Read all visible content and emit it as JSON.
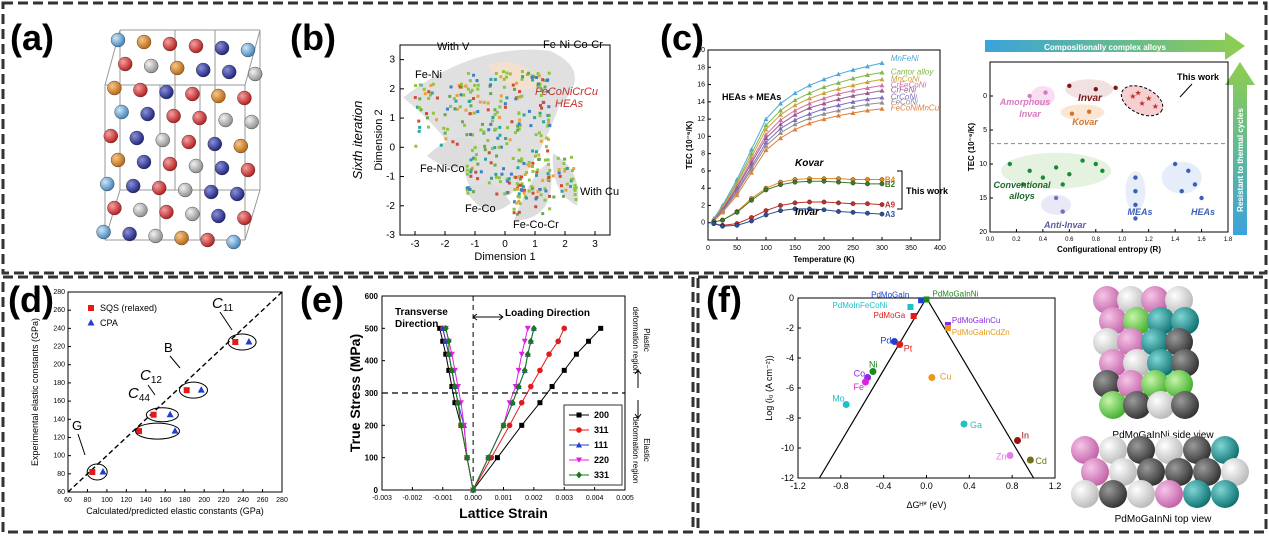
{
  "panel_labels": {
    "a": "(a)",
    "b": "(b)",
    "c": "(c)",
    "d": "(d)",
    "e": "(e)",
    "f": "(f)"
  },
  "chart_data": [
    {
      "panel": "b",
      "type": "scatter",
      "title": "",
      "xlabel": "Dimension 1",
      "ylabel": "Dimension 2",
      "side_label": "Sixth iteration",
      "xlim": [
        -3.5,
        3.5
      ],
      "ylim": [
        -3,
        3.5
      ],
      "x_ticks": [
        "-3",
        "-2",
        "-1",
        "0",
        "1",
        "2",
        "3"
      ],
      "y_ticks": [
        "3",
        "2",
        "1",
        "0",
        "-1",
        "-2",
        "-3"
      ],
      "annotations": [
        "With V",
        "Fe-Ni-Co-Cr",
        "Fe-Ni",
        "FeCoNiCrCu HEAs",
        "Fe-Ni-Co",
        "With Cu",
        "Fe-Co",
        "Fe-Co-Cr"
      ]
    },
    {
      "panel": "c-left",
      "type": "line",
      "xlabel": "Temperature (K)",
      "ylabel": "TEC (10⁻⁶/K)",
      "xlim": [
        0,
        400
      ],
      "ylim": [
        -2,
        20
      ],
      "x_ticks": [
        "0",
        "50",
        "100",
        "150",
        "200",
        "250",
        "300",
        "350",
        "400"
      ],
      "y_ticks": [
        "0",
        "2",
        "4",
        "6",
        "8",
        "10",
        "12",
        "14",
        "16",
        "18",
        "20"
      ],
      "annotations": [
        "HEAs + MEAs",
        "Kovar",
        "Invar",
        "This work"
      ],
      "series": [
        {
          "name": "MnFeNi",
          "color": "#4fa8d8",
          "x": [
            10,
            25,
            50,
            75,
            100,
            125,
            150,
            175,
            200,
            225,
            250,
            275,
            300
          ],
          "y": [
            0.5,
            2,
            5,
            8.5,
            12,
            13.8,
            15,
            15.9,
            16.6,
            17.2,
            17.7,
            18.1,
            18.5
          ]
        },
        {
          "name": "Cantor alloy",
          "color": "#7fb84a",
          "x": [
            10,
            25,
            50,
            75,
            100,
            125,
            150,
            175,
            200,
            225,
            250,
            275,
            300
          ],
          "y": [
            0.4,
            1.8,
            4.7,
            8,
            11.3,
            13,
            14.2,
            15,
            15.7,
            16.2,
            16.7,
            17.1,
            17.4
          ]
        },
        {
          "name": "MnCoNi",
          "color": "#c9a43a",
          "x": [
            10,
            25,
            50,
            75,
            100,
            125,
            150,
            175,
            200,
            225,
            250,
            275,
            300
          ],
          "y": [
            0.4,
            1.7,
            4.5,
            7.6,
            10.8,
            12.5,
            13.6,
            14.4,
            15,
            15.5,
            15.9,
            16.3,
            16.6
          ]
        },
        {
          "name": "CrFeCoNi",
          "color": "#d46fa7",
          "x": [
            10,
            25,
            50,
            75,
            100,
            125,
            150,
            175,
            200,
            225,
            250,
            275,
            300
          ],
          "y": [
            0.3,
            1.6,
            4.2,
            7.2,
            10.2,
            11.9,
            13,
            13.8,
            14.4,
            14.9,
            15.3,
            15.6,
            15.9
          ]
        },
        {
          "name": "CrFeNi",
          "color": "#9c5a8a",
          "x": [
            10,
            25,
            50,
            75,
            100,
            125,
            150,
            175,
            200,
            225,
            250,
            275,
            300
          ],
          "y": [
            0.3,
            1.5,
            4,
            6.9,
            9.8,
            11.4,
            12.5,
            13.3,
            13.8,
            14.3,
            14.7,
            15,
            15.3
          ]
        },
        {
          "name": "CrCoNi",
          "color": "#7a6bc0",
          "x": [
            10,
            25,
            50,
            75,
            100,
            125,
            150,
            175,
            200,
            225,
            250,
            275,
            300
          ],
          "y": [
            0.3,
            1.4,
            3.7,
            6.5,
            9.3,
            10.9,
            11.9,
            12.6,
            13.2,
            13.6,
            14,
            14.3,
            14.5
          ]
        },
        {
          "name": "FeCoNi",
          "color": "#8f8f8f",
          "x": [
            10,
            25,
            50,
            75,
            100,
            125,
            150,
            175,
            200,
            225,
            250,
            275,
            300
          ],
          "y": [
            0.2,
            1.3,
            3.5,
            6.2,
            8.9,
            10.4,
            11.4,
            12.1,
            12.6,
            13,
            13.4,
            13.7,
            13.9
          ]
        },
        {
          "name": "FeCoNiMnCu",
          "color": "#e07f3a",
          "x": [
            10,
            25,
            50,
            75,
            100,
            125,
            150,
            175,
            200,
            225,
            250,
            275,
            300
          ],
          "y": [
            0.2,
            1.2,
            3.2,
            5.8,
            8.4,
            9.8,
            10.8,
            11.5,
            12,
            12.4,
            12.7,
            13,
            13.2
          ]
        },
        {
          "name": "B4",
          "color": "#e08a1e",
          "x": [
            10,
            25,
            50,
            75,
            100,
            125,
            150,
            175,
            200,
            225,
            250,
            275,
            300
          ],
          "y": [
            0.1,
            0.3,
            1.3,
            2.8,
            4,
            4.7,
            5,
            5.1,
            5.1,
            5.1,
            5,
            5,
            5
          ]
        },
        {
          "name": "B2",
          "color": "#3b7a28",
          "x": [
            10,
            25,
            50,
            75,
            100,
            125,
            150,
            175,
            200,
            225,
            250,
            275,
            300
          ],
          "y": [
            0.1,
            0.3,
            1.2,
            2.6,
            3.8,
            4.4,
            4.7,
            4.8,
            4.8,
            4.7,
            4.6,
            4.5,
            4.5
          ]
        },
        {
          "name": "A9",
          "color": "#c0302a",
          "x": [
            10,
            25,
            50,
            75,
            100,
            125,
            150,
            175,
            200,
            225,
            250,
            275,
            300
          ],
          "y": [
            -0.1,
            -0.3,
            -0.1,
            0.6,
            1.4,
            2,
            2.3,
            2.4,
            2.4,
            2.3,
            2.2,
            2.2,
            2.1
          ]
        },
        {
          "name": "A3",
          "color": "#2b4f9a",
          "x": [
            10,
            25,
            50,
            75,
            100,
            125,
            150,
            175,
            200,
            225,
            250,
            275,
            300
          ],
          "y": [
            -0.1,
            -0.4,
            -0.3,
            0.2,
            0.9,
            1.4,
            1.6,
            1.6,
            1.5,
            1.3,
            1.2,
            1.1,
            1
          ]
        }
      ]
    },
    {
      "panel": "c-right",
      "type": "scatter",
      "xlabel": "Configurational entropy (R)",
      "ylabel": "TEC (10⁻⁶/K)",
      "xlim": [
        0,
        1.8
      ],
      "ylim": [
        20,
        -5
      ],
      "x_ticks": [
        "0.0",
        "0.2",
        "0.4",
        "0.6",
        "0.8",
        "1.0",
        "1.2",
        "1.4",
        "1.6",
        "1.8"
      ],
      "y_ticks": [
        "0",
        "5",
        "10",
        "15",
        "20"
      ],
      "top_arrow_label": "Compositionally complex alloys",
      "side_arrow_label": "Resistant to thermal cycles",
      "annotations": [
        "This work",
        "Amorphous Invar",
        "Invar",
        "Kovar",
        "Conventional alloys",
        "Anti-Invar",
        "MEAs",
        "HEAs"
      ]
    },
    {
      "panel": "d",
      "type": "scatter",
      "xlabel": "Calculated/predicted elastic constants (GPa)",
      "ylabel": "Experimental elastic constants (GPa)",
      "xlim": [
        60,
        280
      ],
      "ylim": [
        60,
        280
      ],
      "x_ticks": [
        "60",
        "80",
        "100",
        "120",
        "140",
        "160",
        "180",
        "200",
        "220",
        "240",
        "260",
        "280"
      ],
      "y_ticks": [
        "60",
        "80",
        "100",
        "120",
        "140",
        "160",
        "180",
        "200",
        "220",
        "240",
        "260",
        "280"
      ],
      "legend": [
        "SQS (relaxed)",
        "CPA"
      ],
      "legend_position": "top-left",
      "annotations": [
        "C11",
        "B",
        "C12",
        "C44",
        "G"
      ],
      "series": [
        {
          "name": "SQS (relaxed)",
          "color": "#e31a1c",
          "x": [
            232,
            182,
            148,
            133,
            85
          ],
          "y": [
            225,
            172,
            145,
            127,
            82
          ]
        },
        {
          "name": "CPA",
          "color": "#1f3fd1",
          "x": [
            246,
            197,
            165,
            170,
            96
          ],
          "y": [
            225,
            172,
            145,
            127,
            82
          ]
        }
      ]
    },
    {
      "panel": "e",
      "type": "line",
      "xlabel": "Lattice Strain",
      "ylabel": "True Stress (MPa)",
      "xlim": [
        -0.003,
        0.005
      ],
      "ylim": [
        0,
        600
      ],
      "x_ticks": [
        "-0.003",
        "-0.002",
        "-0.001",
        "0.000",
        "0.001",
        "0.002",
        "0.003",
        "0.004",
        "0.005"
      ],
      "y_ticks": [
        "0",
        "100",
        "200",
        "300",
        "400",
        "500",
        "600"
      ],
      "annotations": [
        "Transverse Direction",
        "Loading Direction",
        "Plastic deformation region",
        "Elastic deformation region"
      ],
      "legend": [
        "200",
        "311",
        "111",
        "220",
        "331"
      ],
      "series": [
        {
          "name": "200",
          "color": "#000000",
          "marker": "square",
          "x_load": [
            0,
            0.0008,
            0.0016,
            0.0022,
            0.0026,
            0.003,
            0.0034,
            0.0038,
            0.0042
          ],
          "x_trans": [
            0,
            -0.0002,
            -0.0004,
            -0.0006,
            -0.0007,
            -0.0008,
            -0.0009,
            -0.001,
            -0.0011
          ],
          "y": [
            0,
            100,
            200,
            270,
            320,
            370,
            420,
            460,
            500
          ]
        },
        {
          "name": "311",
          "color": "#e31a1c",
          "marker": "circle",
          "x_load": [
            0,
            0.0006,
            0.0012,
            0.0016,
            0.0019,
            0.0022,
            0.0025,
            0.0028,
            0.003
          ],
          "x_trans": [
            0,
            -0.0002,
            -0.0004,
            -0.0005,
            -0.0006,
            -0.0007,
            -0.0008,
            -0.0009,
            -0.001
          ],
          "y": [
            0,
            100,
            200,
            270,
            320,
            370,
            420,
            460,
            500
          ]
        },
        {
          "name": "111",
          "color": "#1f3fd1",
          "marker": "triangle",
          "x_load": [
            0,
            0.0005,
            0.001,
            0.0013,
            0.0015,
            0.0017,
            0.0018,
            0.0019,
            0.002
          ],
          "x_trans": [
            0,
            -0.0002,
            -0.0003,
            -0.0005,
            -0.0006,
            -0.0007,
            -0.0008,
            -0.0009,
            -0.001
          ],
          "y": [
            0,
            100,
            200,
            270,
            320,
            370,
            420,
            460,
            500
          ]
        },
        {
          "name": "220",
          "color": "#e020e0",
          "marker": "triangle-down",
          "x_load": [
            0,
            0.0005,
            0.001,
            0.0012,
            0.0014,
            0.0015,
            0.0016,
            0.0017,
            0.0018
          ],
          "x_trans": [
            0,
            -0.0002,
            -0.0003,
            -0.0004,
            -0.0005,
            -0.0006,
            -0.0007,
            -0.0008,
            -0.0009
          ],
          "y": [
            0,
            100,
            200,
            270,
            320,
            370,
            420,
            460,
            500
          ]
        },
        {
          "name": "331",
          "color": "#1a7a1a",
          "marker": "diamond",
          "x_load": [
            0,
            0.0005,
            0.001,
            0.0013,
            0.0015,
            0.0017,
            0.0018,
            0.0019,
            0.002
          ],
          "x_trans": [
            0,
            -0.0002,
            -0.0004,
            -0.0005,
            -0.0006,
            -0.0007,
            -0.0008,
            -0.0008,
            -0.0009
          ],
          "y": [
            0,
            100,
            200,
            270,
            320,
            370,
            420,
            460,
            500
          ]
        }
      ]
    },
    {
      "panel": "f",
      "type": "scatter",
      "xlabel": "ΔGᴴ* (eV)",
      "ylabel": "Log (i₀ (A cm⁻²))",
      "xlim": [
        -1.2,
        1.2
      ],
      "ylim": [
        -12,
        0
      ],
      "x_ticks": [
        "-1.2",
        "-0.8",
        "-0.4",
        "0.0",
        "0.4",
        "0.8",
        "1.2"
      ],
      "y_ticks": [
        "0",
        "-2",
        "-4",
        "-6",
        "-8",
        "-10",
        "-12"
      ],
      "points": [
        {
          "label": "PdMoGaIn",
          "x": -0.05,
          "y": -0.15,
          "color": "#1f3fd1"
        },
        {
          "label": "PdMoGaInNi",
          "x": 0.0,
          "y": -0.1,
          "color": "#1a8a1a"
        },
        {
          "label": "PdMoInFeCoNi",
          "x": -0.15,
          "y": -0.6,
          "color": "#20c0c8"
        },
        {
          "label": "PdMoGa",
          "x": -0.12,
          "y": -1.2,
          "color": "#e31a1c"
        },
        {
          "label": "PdMoGaInCu",
          "x": 0.2,
          "y": -1.8,
          "color": "#8a2be2"
        },
        {
          "label": "PdMoGaInCdZn",
          "x": 0.2,
          "y": -2.0,
          "color": "#e69a1a"
        },
        {
          "label": "Pd",
          "x": -0.3,
          "y": -2.9,
          "color": "#1f3fd1"
        },
        {
          "label": "Pt",
          "x": -0.25,
          "y": -3.1,
          "color": "#e31a1c"
        },
        {
          "label": "Ni",
          "x": -0.5,
          "y": -4.9,
          "color": "#1a8a1a"
        },
        {
          "label": "Co",
          "x": -0.55,
          "y": -5.3,
          "color": "#8a2be2"
        },
        {
          "label": "Fe",
          "x": -0.57,
          "y": -5.6,
          "color": "#e020e0"
        },
        {
          "label": "Cu",
          "x": 0.05,
          "y": -5.3,
          "color": "#e69a1a"
        },
        {
          "label": "Mo",
          "x": -0.75,
          "y": -7.1,
          "color": "#20c0c8"
        },
        {
          "label": "Ga",
          "x": 0.35,
          "y": -8.4,
          "color": "#20c0c8"
        },
        {
          "label": "In",
          "x": 0.85,
          "y": -9.5,
          "color": "#a01010"
        },
        {
          "label": "Zn",
          "x": 0.78,
          "y": -10.5,
          "color": "#e080e0"
        },
        {
          "label": "Cd",
          "x": 0.97,
          "y": -10.8,
          "color": "#707020"
        }
      ]
    }
  ],
  "crystal_labels": {
    "side": "PdMoGaInNi side view",
    "top": "PdMoGaInNi top view"
  }
}
